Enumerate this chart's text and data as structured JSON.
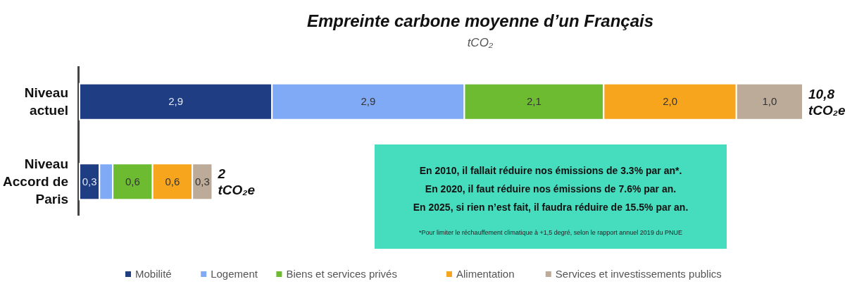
{
  "chart_data": {
    "type": "bar",
    "orientation": "horizontal",
    "stacked": true,
    "title": "Empreinte carbone moyenne d’un Français",
    "subtitle": "tCO₂",
    "categories": [
      "Niveau actuel",
      "Niveau Accord de Paris"
    ],
    "series": [
      {
        "name": "Mobilité",
        "color": "#1f3d82",
        "values": [
          2.9,
          0.3
        ],
        "value_labels": [
          "2,9",
          "0,3"
        ]
      },
      {
        "name": "Logement",
        "color": "#80aaf6",
        "values": [
          2.9,
          0.2
        ],
        "value_labels": [
          "2,9",
          null
        ]
      },
      {
        "name": "Biens et services privés",
        "color": "#6cbb30",
        "values": [
          2.1,
          0.6
        ],
        "value_labels": [
          "2,1",
          "0,6"
        ]
      },
      {
        "name": "Alimentation",
        "color": "#f8a51e",
        "values": [
          2.0,
          0.6
        ],
        "value_labels": [
          "2,0",
          "0,6"
        ]
      },
      {
        "name": "Services et investissements publics",
        "color": "#bcab98",
        "values": [
          1.0,
          0.3
        ],
        "value_labels": [
          "1,0",
          "0,3"
        ]
      }
    ],
    "totals": [
      "10,8 tCO₂e",
      "2 tCO₂e"
    ],
    "annotations": [
      "En 2010, il fallait réduire nos émissions de 3.3% par an*.",
      "En 2020, il faut réduire nos émissions de 7.6% par an.",
      "En 2025, si rien n’est fait, il faudra réduire de 15.5% par an.",
      "*Pour limiter le réchauffement climatique à +1,5 degré, selon le rapport annuel 2019 du PNUE"
    ],
    "legend": "bottom"
  }
}
